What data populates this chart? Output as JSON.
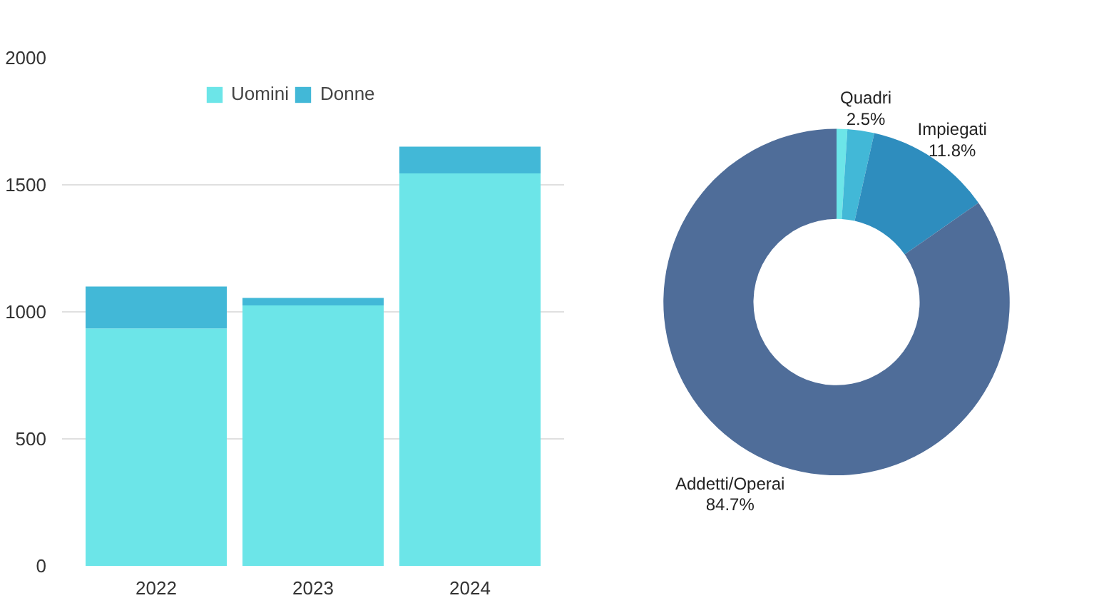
{
  "chart_data": [
    {
      "type": "bar",
      "stacked": true,
      "categories": [
        "2022",
        "2023",
        "2024"
      ],
      "series": [
        {
          "name": "Uomini",
          "color": "#6ce5e8",
          "values": [
            935,
            1025,
            1545
          ]
        },
        {
          "name": "Donne",
          "color": "#42b8d7",
          "values": [
            165,
            30,
            105
          ]
        }
      ],
      "ylim": [
        0,
        2000
      ],
      "yticks": [
        0,
        500,
        1000,
        1500,
        2000
      ],
      "grid": "y",
      "legend": "top"
    },
    {
      "type": "donut",
      "categories": [
        null,
        "Quadri",
        "Impiegati",
        "Addetti/Operai"
      ],
      "values": [
        1.0,
        2.5,
        11.8,
        84.7
      ],
      "colors": [
        "#6ce5e8",
        "#42b8d7",
        "#2e8dbe",
        "#4f6d99"
      ],
      "value_labels": [
        null,
        "2.5%",
        "11.8%",
        "84.7%"
      ]
    }
  ]
}
